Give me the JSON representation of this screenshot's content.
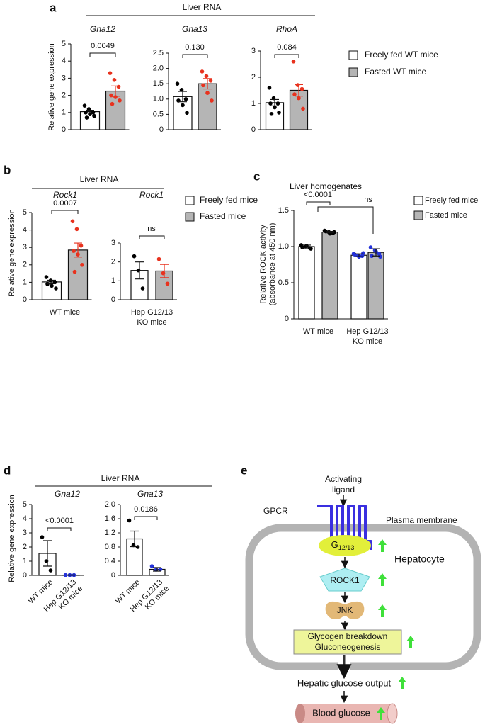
{
  "panels": [
    {
      "label": "a",
      "header": "Liver RNA",
      "legend": [
        {
          "name": "Freely fed WT mice",
          "color": "#ffffff"
        },
        {
          "name": "Fasted WT mice",
          "color": "#b5b5b5"
        }
      ]
    },
    {
      "label": "b",
      "header": "Liver RNA",
      "legend": [
        {
          "name": "Freely fed mice",
          "color": "#ffffff"
        },
        {
          "name": "Fasted mice",
          "color": "#b5b5b5"
        }
      ]
    },
    {
      "label": "c",
      "legend": [
        {
          "name": "Freely fed mice",
          "color": "#ffffff"
        },
        {
          "name": "Fasted mice",
          "color": "#b5b5b5"
        }
      ]
    },
    {
      "label": "d",
      "header": "Liver RNA"
    },
    {
      "label": "e"
    }
  ],
  "chart_data": [
    {
      "type": "bar",
      "title": "Gna12",
      "ylabel": "Relative gene expression",
      "categories": [
        null
      ],
      "ylim": [
        0,
        5
      ],
      "yticks": [
        0,
        1,
        2,
        3,
        4,
        5
      ],
      "annotations": [
        "0.0049"
      ],
      "series": [
        {
          "color": "#ffffff",
          "values": [
            1.05
          ],
          "errors": [
            0.08
          ],
          "points": [
            [
              1.4,
              1.2,
              1.0,
              1.0,
              0.9,
              0.8,
              0.7
            ]
          ],
          "point_colors": [
            "#000000"
          ]
        },
        {
          "color": "#b5b5b5",
          "values": [
            2.25
          ],
          "errors": [
            0.3
          ],
          "points": [
            [
              3.3,
              2.9,
              2.5,
              2.0,
              1.9,
              1.7,
              1.5
            ]
          ],
          "point_colors": [
            "#e8321e"
          ]
        }
      ]
    },
    {
      "type": "bar",
      "title": "Gna13",
      "categories": [
        null
      ],
      "ylim": [
        0,
        2.5
      ],
      "yticks": [
        0,
        0.5,
        {
          "value": 1,
          "label": "1.0"
        },
        1.5,
        {
          "value": 2,
          "label": "2.0"
        },
        2.5
      ],
      "annotations": [
        "0.130"
      ],
      "series": [
        {
          "color": "#ffffff",
          "values": [
            1.08
          ],
          "errors": [
            0.17
          ],
          "points": [
            [
              1.5,
              1.3,
              1.0,
              0.95,
              0.8,
              0.55
            ]
          ],
          "point_colors": [
            "#000000"
          ]
        },
        {
          "color": "#b5b5b5",
          "values": [
            1.5
          ],
          "errors": [
            0.17
          ],
          "points": [
            [
              1.9,
              1.75,
              1.6,
              1.45,
              1.2,
              0.95
            ]
          ],
          "point_colors": [
            "#e8321e"
          ]
        }
      ]
    },
    {
      "type": "bar",
      "title": "RhoA",
      "categories": [
        null
      ],
      "ylim": [
        0,
        3
      ],
      "yticks": [
        0,
        1,
        2,
        3
      ],
      "annotations": [
        "0.084"
      ],
      "series": [
        {
          "color": "#ffffff",
          "values": [
            1.03
          ],
          "errors": [
            0.12
          ],
          "points": [
            [
              1.6,
              1.2,
              1.0,
              1.0,
              0.85,
              0.65,
              0.6
            ]
          ],
          "point_colors": [
            "#000000"
          ]
        },
        {
          "color": "#b5b5b5",
          "values": [
            1.5
          ],
          "errors": [
            0.22
          ],
          "points": [
            [
              2.6,
              1.7,
              1.55,
              1.35,
              1.2,
              0.8
            ]
          ],
          "point_colors": [
            "#e8321e"
          ]
        }
      ]
    },
    {
      "type": "bar",
      "title": "Rock1",
      "ylabel": "Relative gene expression",
      "categories": [
        "WT mice"
      ],
      "ylim": [
        0,
        5
      ],
      "yticks": [
        0,
        1,
        2,
        3,
        4,
        5
      ],
      "annotations": [
        "0.0007"
      ],
      "series": [
        {
          "color": "#ffffff",
          "values": [
            1.02
          ],
          "errors": [
            0.1
          ],
          "points": [
            [
              1.3,
              1.1,
              1.0,
              0.9,
              0.8,
              0.65
            ]
          ],
          "point_colors": [
            "#000000"
          ]
        },
        {
          "color": "#b5b5b5",
          "values": [
            2.85
          ],
          "errors": [
            0.4
          ],
          "points": [
            [
              4.5,
              4.05,
              3.1,
              2.8,
              2.6,
              2.0,
              1.6
            ]
          ],
          "point_colors": [
            "#e8321e"
          ]
        }
      ]
    },
    {
      "type": "bar",
      "title": "Rock1",
      "categories": [
        [
          "Hep G12/13",
          "KO mice"
        ]
      ],
      "ylim": [
        0,
        3
      ],
      "yticks": [
        0,
        1,
        2,
        3
      ],
      "annotations": [
        "ns"
      ],
      "series": [
        {
          "color": "#ffffff",
          "values": [
            1.55
          ],
          "errors": [
            0.45
          ],
          "points": [
            [
              2.3,
              1.55,
              0.6
            ]
          ],
          "point_colors": [
            "#000000"
          ]
        },
        {
          "color": "#b5b5b5",
          "values": [
            1.52
          ],
          "errors": [
            0.35
          ],
          "points": [
            [
              2.15,
              1.4,
              0.85
            ]
          ],
          "point_colors": [
            "#e8321e"
          ]
        }
      ]
    },
    {
      "type": "bar",
      "title": "Liver homogenates",
      "ylabel": [
        "Relative ROCK activity",
        "(absorbance at 450 nm)"
      ],
      "categories": [
        "WT mice",
        [
          "Hep G12/13",
          "KO mice"
        ]
      ],
      "ylim": [
        0,
        1.5
      ],
      "yticks": [
        0,
        0.5,
        {
          "value": 1,
          "label": "1.0"
        },
        1.5
      ],
      "annotations": [
        "<0.0001",
        "ns"
      ],
      "series": [
        {
          "color": "#ffffff",
          "values": [
            1.0,
            0.88
          ],
          "errors": [
            0.02,
            0.02
          ],
          "points": [
            [
              1.02,
              1.0,
              0.98,
              0.99,
              1.01,
              0.97
            ],
            [
              0.9,
              0.88,
              0.87,
              0.89,
              0.86,
              0.91
            ]
          ],
          "point_colors": [
            "#000000",
            "#2432d8"
          ]
        },
        {
          "color": "#b5b5b5",
          "values": [
            1.2,
            0.92
          ],
          "errors": [
            0.01,
            0.05
          ],
          "points": [
            [
              1.22,
              1.2,
              1.19,
              1.21,
              1.18,
              1.2
            ],
            [
              0.99,
              0.95,
              0.9,
              0.87,
              0.93,
              0.86
            ]
          ],
          "point_colors": [
            "#000000",
            "#2432d8"
          ]
        }
      ]
    },
    {
      "type": "bar",
      "title": "Gna12",
      "ylabel": "Relative gene expression",
      "categories": [
        "WT mice",
        [
          "Hep G12/13",
          "KO mice"
        ]
      ],
      "ylim": [
        0,
        5
      ],
      "yticks": [
        0,
        1,
        2,
        3,
        4,
        5
      ],
      "annotations": [
        "<0.0001"
      ],
      "series": [
        {
          "color": "#ffffff",
          "values": [
            1.55,
            0.02
          ],
          "errors": [
            0.9,
            0.01
          ],
          "points": [
            [
              2.7,
              1.0,
              0.35
            ],
            [
              0.02,
              0.02,
              0.02
            ]
          ],
          "point_colors": [
            "#000000",
            "#2432d8"
          ]
        }
      ]
    },
    {
      "type": "bar",
      "title": "Gna13",
      "categories": [
        "WT mice",
        [
          "Hep G12/13",
          "KO mice"
        ]
      ],
      "ylim": [
        0,
        2
      ],
      "yticks": [
        0,
        0.4,
        0.8,
        1.2,
        1.6,
        {
          "value": 2,
          "label": "2.0"
        }
      ],
      "annotations": [
        "0.0186"
      ],
      "series": [
        {
          "color": "#ffffff",
          "values": [
            1.03,
            0.17
          ],
          "errors": [
            0.22,
            0.05
          ],
          "points": [
            [
              1.55,
              0.85,
              0.8
            ],
            [
              0.26,
              0.16,
              0.17
            ]
          ],
          "point_colors": [
            "#000000",
            "#2432d8"
          ]
        }
      ]
    }
  ],
  "diagram": {
    "ligand": [
      "Activating",
      "ligand"
    ],
    "gpcr": "GPCR",
    "membrane": "Plasma membrane",
    "g_protein": {
      "main": "G",
      "sub": "12/13"
    },
    "cell": "Hepatocyte",
    "rock": "ROCK1",
    "jnk": "JNK",
    "process": [
      "Glycogen breakdown",
      "Gluconeogenesis"
    ],
    "output": "Hepatic glucose output",
    "blood": "Blood glucose"
  }
}
